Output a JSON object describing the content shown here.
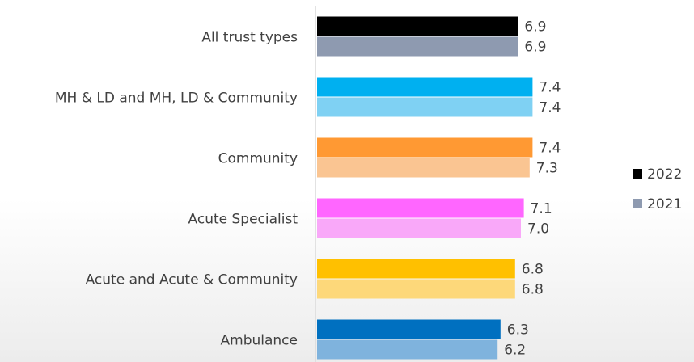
{
  "chart_data": {
    "type": "hbar",
    "categories": [
      "All trust types",
      "MH & LD and MH, LD & Community",
      "Community",
      "Acute Specialist",
      "Acute and Acute & Community",
      "Ambulance"
    ],
    "series": [
      {
        "name": "2022",
        "color": "#000000",
        "colors": [
          "#000000",
          "#00b0f0",
          "#ff9933",
          "#ff66ff",
          "#ffc000",
          "#0070c0"
        ],
        "values": [
          6.9,
          7.4,
          7.4,
          7.1,
          6.8,
          6.3
        ]
      },
      {
        "name": "2021",
        "color": "#8e9ab0",
        "colors": [
          "#8e9ab0",
          "#7fd1f3",
          "#fac592",
          "#f9a8f9",
          "#fdd87a",
          "#7fb3dd"
        ],
        "values": [
          6.9,
          7.4,
          7.3,
          7.0,
          6.8,
          6.2
        ],
        "value_labels": [
          "6.9",
          "7.4",
          "7.3",
          "7.0",
          "6.8",
          "6.2"
        ]
      }
    ],
    "xlim": [
      0,
      10
    ],
    "legend": "right"
  }
}
